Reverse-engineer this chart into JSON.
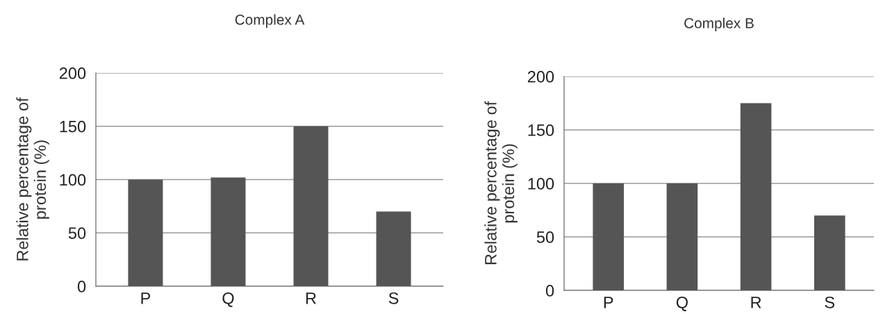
{
  "chart_data": [
    {
      "type": "bar",
      "title": "Complex A",
      "ylabel": "Relative percentage of\nprotein (%)",
      "categories": [
        "P",
        "Q",
        "R",
        "S"
      ],
      "values": [
        100,
        102,
        150,
        70
      ],
      "color": "#555555",
      "ylim": [
        0,
        200
      ],
      "yticks": [
        0,
        50,
        100,
        150,
        200
      ],
      "grid": "y"
    },
    {
      "type": "bar",
      "title": "Complex B",
      "ylabel": "Relative percentage of\nprotein (%)",
      "categories": [
        "P",
        "Q",
        "R",
        "S"
      ],
      "values": [
        100,
        100,
        175,
        70
      ],
      "color": "#555555",
      "ylim": [
        0,
        200
      ],
      "yticks": [
        0,
        50,
        100,
        150,
        200
      ],
      "grid": "y"
    }
  ]
}
